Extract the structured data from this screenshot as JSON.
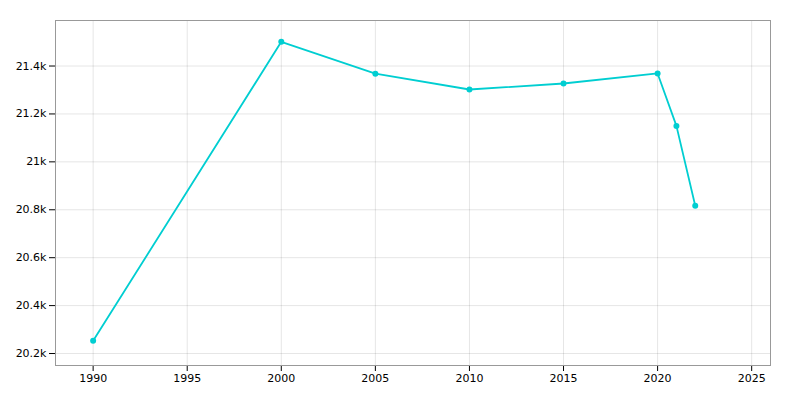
{
  "chart_data": {
    "type": "line",
    "x": [
      1990,
      2000,
      2005,
      2010,
      2015,
      2020,
      2021,
      2022
    ],
    "values": [
      20253,
      21501,
      21368,
      21302,
      21327,
      21369,
      21150,
      20817
    ],
    "color": "#00CED1",
    "marker": "circle",
    "xlim": [
      1988,
      2026
    ],
    "ylim": [
      20150,
      21590
    ],
    "xticks": [
      1990,
      1995,
      2000,
      2005,
      2010,
      2015,
      2020,
      2025
    ],
    "yticks": [
      {
        "value": 20200,
        "label": "20.2k"
      },
      {
        "value": 20400,
        "label": "20.4k"
      },
      {
        "value": 20600,
        "label": "20.6k"
      },
      {
        "value": 20800,
        "label": "20.8k"
      },
      {
        "value": 21000,
        "label": "21k"
      },
      {
        "value": 21200,
        "label": "21.2k"
      },
      {
        "value": 21400,
        "label": "21.4k"
      }
    ],
    "grid": true
  }
}
